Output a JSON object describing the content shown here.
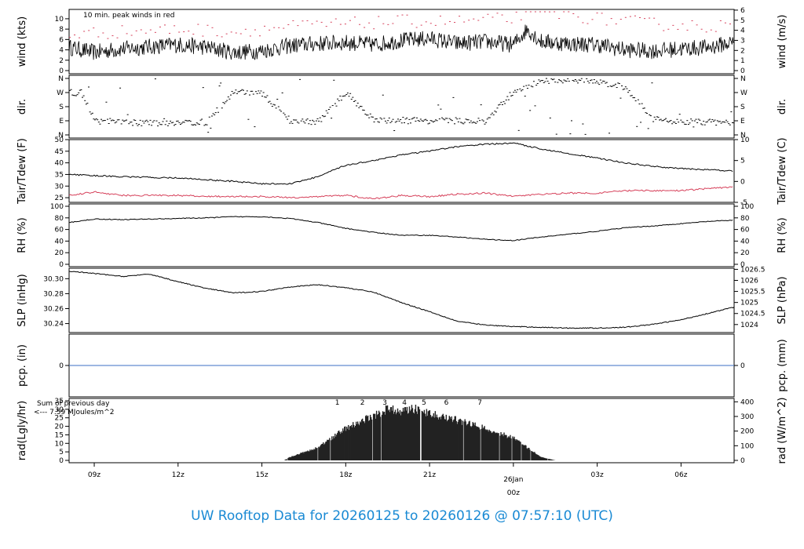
{
  "footer": {
    "title": "UW Rooftop Data for 20260125  to  20260126 @ 07:57:10  (UTC)"
  },
  "colors": {
    "black": "#000000",
    "red": "#d6405a",
    "blue": "#3b6fc4",
    "purple": "#a020f0",
    "title_blue": "#1a8ad4",
    "date_red": "#d6405a"
  },
  "x_axis": {
    "ticks": [
      {
        "label": "09z",
        "hour": 9
      },
      {
        "label": "12z",
        "hour": 12
      },
      {
        "label": "15z",
        "hour": 15
      },
      {
        "label": "18z",
        "hour": 18
      },
      {
        "label": "21z",
        "hour": 21
      },
      {
        "label": "00z",
        "hour": 24
      },
      {
        "label": "03z",
        "hour": 27
      },
      {
        "label": "06z",
        "hour": 30
      }
    ],
    "date_label": "26Jan",
    "date_sublabel": "00z",
    "range_hours": [
      8.1,
      31.9
    ]
  },
  "panels": {
    "wind": {
      "left_label": "wind (kts)",
      "right_label": "wind (m/s)",
      "note": "10 min. peak winds in red",
      "left_ticks": [
        "0",
        "2",
        "4",
        "6",
        "8",
        "10"
      ],
      "right_ticks": [
        "0",
        "1",
        "2",
        "3",
        "4",
        "5",
        "6"
      ]
    },
    "dir": {
      "left_label": "dir.",
      "right_label": "dir.",
      "ticks": [
        "N",
        "E",
        "S",
        "W",
        "N"
      ]
    },
    "temp": {
      "left_label": "Tair/Tdew (F)",
      "right_label": "Tair/Tdew (C)",
      "left_ticks": [
        "25",
        "30",
        "35",
        "40",
        "45",
        "50"
      ],
      "right_ticks": [
        "-5",
        "0",
        "5",
        "10"
      ]
    },
    "rh": {
      "left_label": "RH (%)",
      "right_label": "RH (%)",
      "ticks": [
        "0",
        "20",
        "40",
        "60",
        "80",
        "100"
      ]
    },
    "slp": {
      "left_label": "SLP (inHg)",
      "right_label": "SLP (hPa)",
      "left_ticks": [
        "30.24",
        "30.26",
        "30.28",
        "30.30"
      ],
      "right_ticks": [
        "1024",
        "1024.5",
        "1025",
        "1025.5",
        "1026",
        "1026.5"
      ]
    },
    "pcp": {
      "left_label": "pcp. (in)",
      "right_label": "pcp. (mm)",
      "left_ticks": [
        "0"
      ],
      "right_ticks": [
        "0"
      ]
    },
    "rad": {
      "left_label": "rad(Lgly/hr)",
      "right_label": "rad (W/m^2)",
      "left_ticks": [
        "0",
        "5",
        "10",
        "15",
        "20",
        "25",
        "30",
        "35"
      ],
      "right_ticks": [
        "0",
        "100",
        "200",
        "300",
        "400"
      ],
      "note_line1": "Sum of previous day",
      "note_line2": "<--- 7.59 MJoules/m^2",
      "markers": [
        "1",
        "2",
        "3",
        "4",
        "5",
        "6",
        "7"
      ]
    }
  },
  "chart_data": [
    {
      "type": "line",
      "title": "",
      "ylabel": "wind (kts)",
      "y2label": "wind (m/s)",
      "ylim": [
        0,
        11.5
      ],
      "series": [
        {
          "values": {
            "x": [
              8.1,
              9,
              10,
              11,
              12,
              13,
              14,
              15,
              16,
              17,
              18,
              19,
              20,
              21,
              22,
              23,
              24,
              24.5,
              25,
              26,
              27,
              28,
              29,
              30,
              31,
              31.9
            ],
            "y": [
              4.5,
              3.5,
              4.2,
              4.6,
              5.0,
              4.5,
              3.5,
              3.8,
              4.8,
              5.2,
              5.4,
              5.0,
              5.8,
              6.2,
              5.2,
              5.6,
              5.0,
              8.0,
              5.6,
              5.2,
              5.0,
              4.0,
              3.8,
              4.2,
              4.5,
              5.5
            ]
          }
        },
        {
          "name": "10 min. peak winds in red",
          "values": {
            "x": [
              8.1,
              10,
              12,
              14,
              16,
              18,
              20,
              22,
              24,
              24.5,
              25,
              27,
              29,
              31,
              31.9
            ],
            "y": [
              7,
              7.5,
              8,
              7.5,
              8.5,
              9,
              9.5,
              9.5,
              10,
              12,
              11.5,
              10,
              9,
              8.5,
              9
            ]
          }
        }
      ]
    },
    {
      "type": "scatter",
      "title": "",
      "ylabel": "dir.",
      "ylim": [
        0,
        360
      ],
      "series": [
        {
          "values": {
            "x": [
              8.5,
              9,
              10,
              11,
              12,
              13,
              14,
              15,
              16,
              17,
              18,
              19,
              20,
              21,
              22,
              23,
              24,
              25,
              26,
              27,
              28,
              29,
              30,
              31
            ],
            "y": [
              270,
              90,
              80,
              75,
              80,
              80,
              280,
              260,
              90,
              85,
              270,
              90,
              95,
              90,
              90,
              85,
              280,
              340,
              350,
              340,
              300,
              100,
              85,
              80
            ]
          }
        }
      ]
    },
    {
      "type": "line",
      "title": "",
      "ylabel": "Tair/Tdew (F)",
      "y2label": "Tair/Tdew (C)",
      "ylim": [
        23,
        50
      ],
      "series": [
        {
          "name": "Tair",
          "values": {
            "x": [
              8.1,
              10,
              12,
              14,
              15,
              16,
              17,
              18,
              19,
              20,
              21,
              22,
              23,
              24,
              25,
              26,
              27,
              28,
              29,
              30,
              31,
              31.9
            ],
            "y": [
              35,
              34,
              33.5,
              32,
              31,
              31,
              34,
              39,
              41,
              43.5,
              45,
              47,
              48,
              48.5,
              46,
              44,
              42,
              40,
              38.5,
              37.5,
              37,
              36.5
            ]
          }
        },
        {
          "name": "Tdew",
          "values": {
            "x": [
              8.1,
              9,
              10,
              11,
              12,
              13,
              14,
              15,
              16,
              17,
              18,
              19,
              20,
              21,
              22,
              23,
              24,
              25,
              26,
              27,
              28,
              29,
              30,
              31,
              31.9
            ],
            "y": [
              26,
              27.5,
              26,
              26,
              26,
              25.5,
              25.5,
              25.5,
              25,
              25.5,
              26,
              24.5,
              26,
              25.5,
              26.5,
              27,
              25.5,
              26.5,
              27,
              27,
              28,
              28,
              28,
              29,
              29.5
            ]
          }
        }
      ]
    },
    {
      "type": "line",
      "title": "",
      "ylabel": "RH (%)",
      "ylim": [
        0,
        100
      ],
      "series": [
        {
          "values": {
            "x": [
              8.1,
              9,
              10,
              11,
              12,
              13,
              14,
              15,
              16,
              17,
              18,
              19,
              20,
              21,
              22,
              23,
              24,
              25,
              26,
              27,
              28,
              29,
              30,
              31,
              31.9
            ],
            "y": [
              72,
              78,
              77,
              78,
              79,
              80,
              82,
              82,
              79,
              72,
              62,
              55,
              50,
              50,
              47,
              43,
              41,
              47,
              52,
              57,
              63,
              66,
              70,
              74,
              76
            ]
          }
        }
      ]
    },
    {
      "type": "line",
      "title": "",
      "ylabel": "SLP (inHg)",
      "y2label": "SLP (hPa)",
      "ylim": [
        30.228,
        30.314
      ],
      "series": [
        {
          "values": {
            "x": [
              8.1,
              9,
              10,
              11,
              12,
              13,
              14,
              15,
              16,
              17,
              18,
              19,
              20,
              21,
              22,
              23,
              24,
              25,
              26,
              27,
              28,
              29,
              30,
              31,
              31.9
            ],
            "y": [
              30.31,
              30.307,
              30.303,
              30.306,
              30.296,
              30.287,
              30.281,
              30.283,
              30.289,
              30.292,
              30.288,
              30.282,
              30.268,
              30.256,
              30.243,
              30.238,
              30.236,
              30.235,
              30.234,
              30.234,
              30.235,
              30.239,
              30.245,
              30.254,
              30.262
            ]
          }
        }
      ]
    },
    {
      "type": "line",
      "title": "",
      "ylabel": "pcp. (in)",
      "y2label": "pcp. (mm)",
      "series": [
        {
          "values": {
            "x": [
              8.1,
              31.9
            ],
            "y": [
              0,
              0
            ]
          }
        }
      ]
    },
    {
      "type": "area",
      "title": "",
      "ylabel": "rad(Lgly/hr)",
      "y2label": "rad (W/m^2)",
      "ylim": [
        0,
        35
      ],
      "series": [
        {
          "values": {
            "x": [
              15.8,
              16,
              17,
              18,
              19,
              19.5,
              20,
              20.5,
              21,
              22,
              23,
              24,
              24.5,
              25,
              25.5
            ],
            "y": [
              0,
              2,
              8,
              20,
              28,
              32,
              31,
              32,
              29,
              25,
              20,
              14,
              8,
              2,
              0
            ]
          }
        }
      ]
    }
  ]
}
